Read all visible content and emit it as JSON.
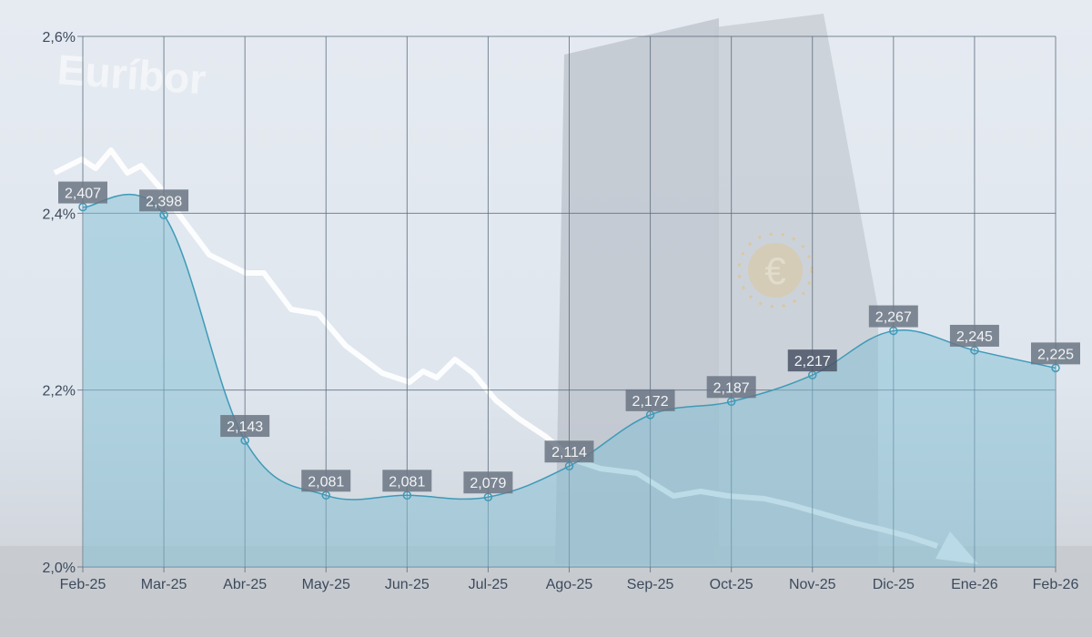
{
  "watermark": "Euríbor",
  "colors": {
    "area": "#7fbdd4",
    "line": "#3f9ab8",
    "grid": "#5d6b7c",
    "label_bg": "#6b7584",
    "label_bg_highlight": "#4a5566"
  },
  "chart_data": {
    "type": "area",
    "title": "",
    "xlabel": "",
    "ylabel": "",
    "categories": [
      "Feb-25",
      "Mar-25",
      "Abr-25",
      "May-25",
      "Jun-25",
      "Jul-25",
      "Ago-25",
      "Sep-25",
      "Oct-25",
      "Nov-25",
      "Dic-25",
      "Ene-26",
      "Feb-26"
    ],
    "values": [
      2.407,
      2.398,
      2.143,
      2.081,
      2.081,
      2.079,
      2.114,
      2.172,
      2.187,
      2.217,
      2.267,
      2.245,
      2.225
    ],
    "data_labels": [
      "2,407",
      "2,398",
      "2,143",
      "2,081",
      "2,081",
      "2,079",
      "2,114",
      "2,172",
      "2,187",
      "2,217",
      "2,267",
      "2,245",
      "2,225"
    ],
    "highlighted_index": 9,
    "ylim": [
      2.0,
      2.6
    ],
    "yticks": [
      2.0,
      2.2,
      2.4,
      2.6
    ],
    "ytick_labels": [
      "2,0%",
      "2,2%",
      "2,4%",
      "2,6%"
    ],
    "grid": true,
    "legend": "none"
  }
}
